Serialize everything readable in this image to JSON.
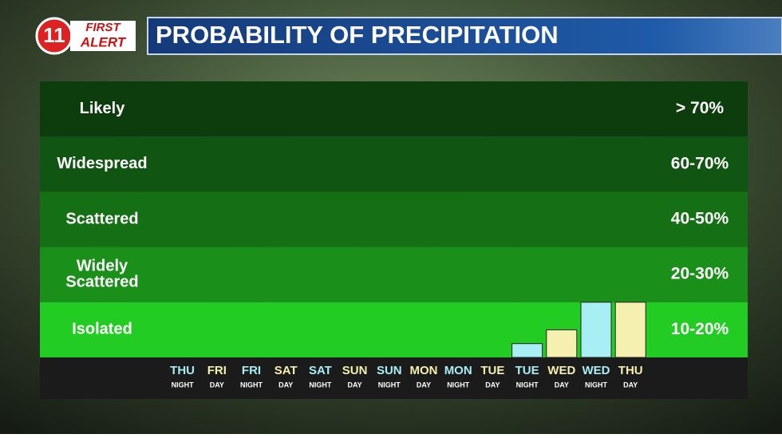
{
  "logo": {
    "number": "11",
    "line1": "FIRST",
    "line2": "ALERT"
  },
  "chart_data": {
    "type": "bar",
    "title": "PROBABILITY OF PRECIPITATION",
    "bands": [
      {
        "label": [
          "Likely"
        ],
        "range": "> 70%",
        "color": "#0d3c0d"
      },
      {
        "label": [
          "Widespread"
        ],
        "range": "60-70%",
        "color": "#115512"
      },
      {
        "label": [
          "Scattered"
        ],
        "range": "40-50%",
        "color": "#157015"
      },
      {
        "label": [
          "Widely",
          "Scattered"
        ],
        "range": "20-30%",
        "color": "#1a901a"
      },
      {
        "label": [
          "Isolated"
        ],
        "range": "10-20%",
        "color": "#22cc22"
      }
    ],
    "categories": [
      [
        "THU",
        "NIGHT"
      ],
      [
        "FRI",
        "DAY"
      ],
      [
        "FRI",
        "NIGHT"
      ],
      [
        "SAT",
        "DAY"
      ],
      [
        "SAT",
        "NIGHT"
      ],
      [
        "SUN",
        "DAY"
      ],
      [
        "SUN",
        "NIGHT"
      ],
      [
        "MON",
        "DAY"
      ],
      [
        "MON",
        "NIGHT"
      ],
      [
        "TUE",
        "DAY"
      ],
      [
        "TUE",
        "NIGHT"
      ],
      [
        "WED",
        "DAY"
      ],
      [
        "WED",
        "NIGHT"
      ],
      [
        "THU",
        "DAY"
      ]
    ],
    "values": [
      0,
      0,
      0,
      0,
      0,
      0,
      0,
      0,
      0,
      0,
      5,
      10,
      20,
      20
    ],
    "colors": [
      "#a8eef5",
      "#f5f0b0",
      "#a8eef5",
      "#f5f0b0",
      "#a8eef5",
      "#f5f0b0",
      "#a8eef5",
      "#f5f0b0",
      "#a8eef5",
      "#f5f0b0",
      "#a8eef5",
      "#f5f0b0",
      "#a8eef5",
      "#f5f0b0"
    ],
    "ylim": [
      0,
      100
    ]
  }
}
